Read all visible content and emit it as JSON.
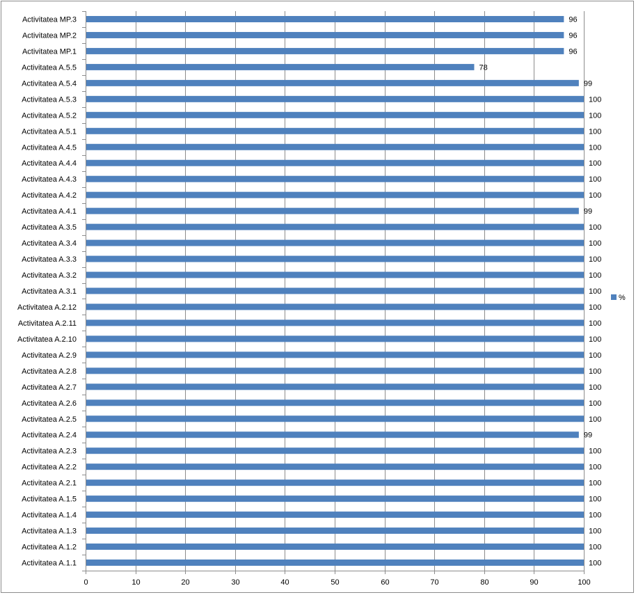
{
  "chart_data": {
    "type": "bar",
    "orientation": "horizontal",
    "title": "",
    "xlabel": "",
    "ylabel": "",
    "xlim": [
      0,
      100
    ],
    "x_ticks": [
      0,
      10,
      20,
      30,
      40,
      50,
      60,
      70,
      80,
      90,
      100
    ],
    "grid": true,
    "legend_position": "right",
    "categories": [
      "Activitatea MP.3",
      "Activitatea MP.2",
      "Activitatea MP.1",
      "Activitatea A.5.5",
      "Activitatea A.5.4",
      "Activitatea A.5.3",
      "Activitatea A.5.2",
      "Activitatea A.5.1",
      "Activitatea A.4.5",
      "Activitatea A.4.4",
      "Activitatea A.4.3",
      "Activitatea A.4.2",
      "Activitatea A.4.1",
      "Activitatea A.3.5",
      "Activitatea A.3.4",
      "Activitatea A.3.3",
      "Activitatea A.3.2",
      "Activitatea A.3.1",
      "Activitatea A.2.12",
      "Activitatea A.2.11",
      "Activitatea A.2.10",
      "Activitatea A.2.9",
      "Activitatea A.2.8",
      "Activitatea A.2.7",
      "Activitatea A.2.6",
      "Activitatea A.2.5",
      "Activitatea A.2.4",
      "Activitatea A.2.3",
      "Activitatea A.2.2",
      "Activitatea A.2.1",
      "Activitatea A.1.5",
      "Activitatea A.1.4",
      "Activitatea A.1.3",
      "Activitatea A.1.2",
      "Activitatea A.1.1"
    ],
    "series": [
      {
        "name": "%",
        "color": "#4f81bd",
        "values": [
          96,
          96,
          96,
          78,
          99,
          100,
          100,
          100,
          100,
          100,
          100,
          100,
          99,
          100,
          100,
          100,
          100,
          100,
          100,
          100,
          100,
          100,
          100,
          100,
          100,
          100,
          99,
          100,
          100,
          100,
          100,
          100,
          100,
          100,
          100
        ]
      }
    ],
    "colors": {
      "gridline": "#8c8c8c",
      "axis": "#8c8c8c"
    }
  }
}
